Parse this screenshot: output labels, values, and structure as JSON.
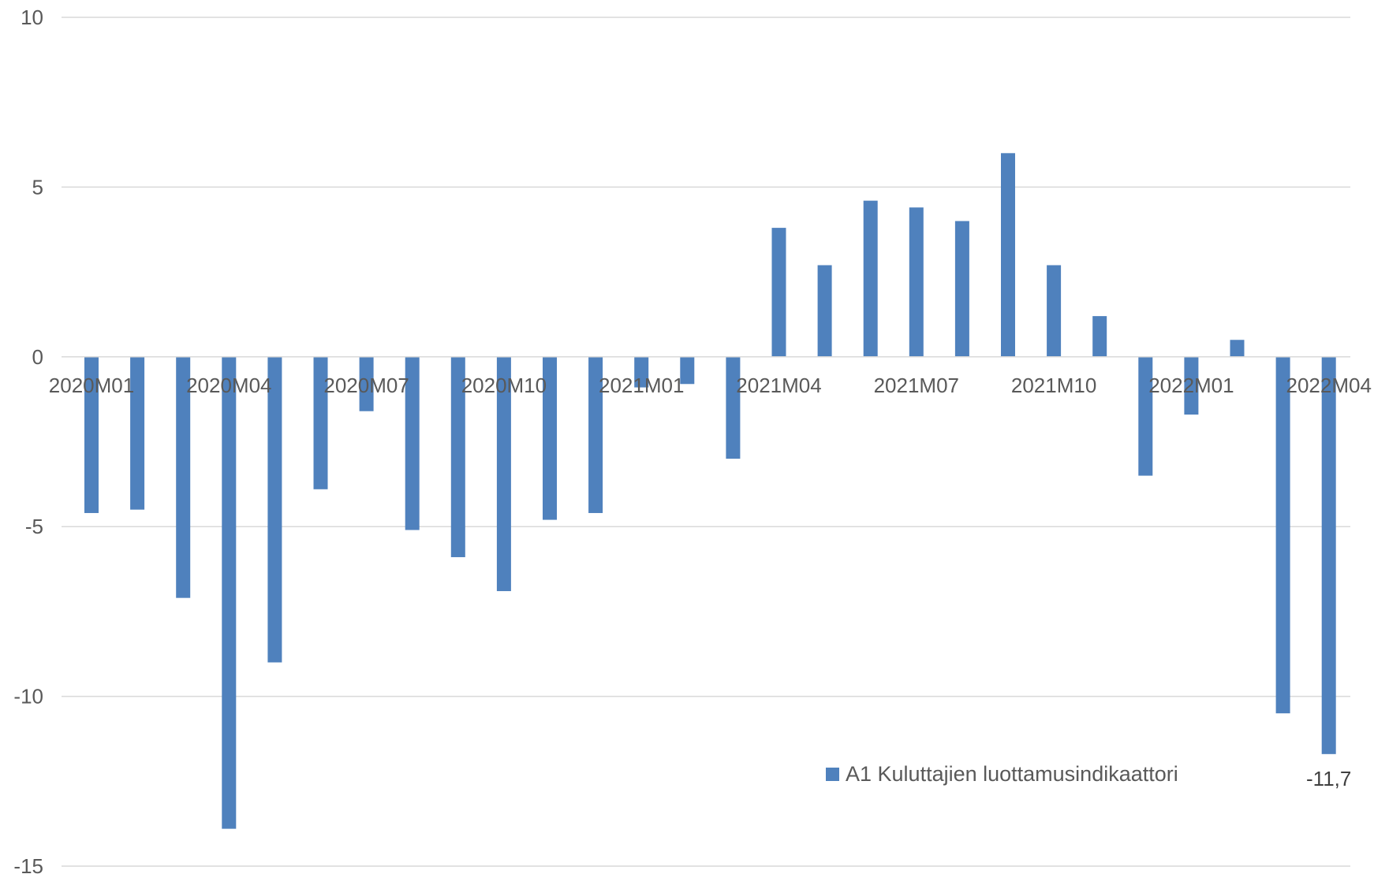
{
  "chart_data": {
    "type": "bar",
    "categories": [
      "2020M01",
      "2020M02",
      "2020M03",
      "2020M04",
      "2020M05",
      "2020M06",
      "2020M07",
      "2020M08",
      "2020M09",
      "2020M10",
      "2020M11",
      "2020M12",
      "2021M01",
      "2021M02",
      "2021M03",
      "2021M04",
      "2021M05",
      "2021M06",
      "2021M07",
      "2021M08",
      "2021M09",
      "2021M10",
      "2021M11",
      "2021M12",
      "2022M01",
      "2022M02",
      "2022M03",
      "2022M04"
    ],
    "x_tick_labels": [
      "2020M01",
      "2020M04",
      "2020M07",
      "2020M10",
      "2021M01",
      "2021M04",
      "2021M07",
      "2021M10",
      "2022M01",
      "2022M04"
    ],
    "series": [
      {
        "name": "A1 Kuluttajien luottamusindikaattori",
        "color": "#4f81bd",
        "values": [
          -4.6,
          -4.5,
          -7.1,
          -13.9,
          -9.0,
          -3.9,
          -1.6,
          -5.1,
          -5.9,
          -6.9,
          -4.8,
          -4.6,
          -0.9,
          -0.8,
          -3.0,
          3.8,
          2.7,
          4.6,
          4.4,
          4.0,
          6.0,
          2.7,
          1.2,
          -3.5,
          -1.7,
          0.5,
          -10.5,
          -11.7
        ]
      }
    ],
    "ylim": [
      -15,
      10
    ],
    "y_ticks": [
      10,
      5,
      0,
      -5,
      -10,
      -15
    ],
    "y_tick_labels": [
      "10",
      "5",
      "0",
      "-5",
      "-10",
      "-15"
    ],
    "grid": true,
    "legend_position": "bottom-right",
    "data_labels": [
      {
        "index": 27,
        "text": "-11,7"
      }
    ]
  }
}
